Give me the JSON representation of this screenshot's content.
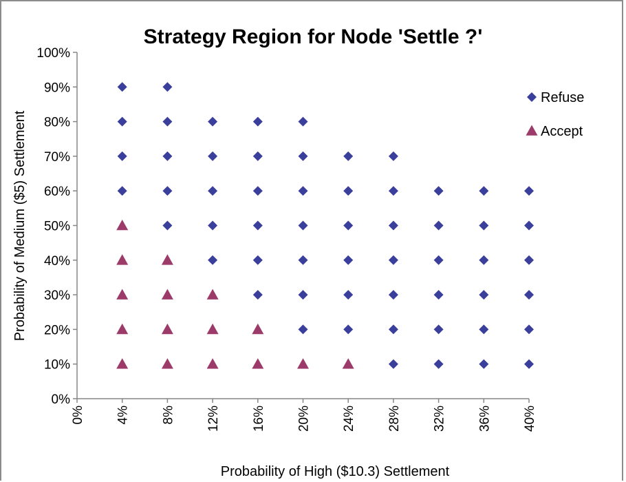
{
  "chart_data": {
    "type": "scatter",
    "title": "Strategy Region for Node 'Settle ?'",
    "xlabel": "Probability of High ($10.3) Settlement",
    "ylabel": "Probability of Medium ($5) Settlement",
    "xlim": [
      0,
      40
    ],
    "ylim": [
      0,
      100
    ],
    "x_ticks": [
      "0%",
      "4%",
      "8%",
      "12%",
      "16%",
      "20%",
      "24%",
      "28%",
      "32%",
      "36%",
      "40%"
    ],
    "y_ticks": [
      "0%",
      "10%",
      "20%",
      "30%",
      "40%",
      "50%",
      "60%",
      "70%",
      "80%",
      "90%",
      "100%"
    ],
    "grid": false,
    "legend_position": "top-right",
    "series": [
      {
        "name": "Refuse",
        "marker": "diamond",
        "color": "#3a3f9c",
        "points": [
          [
            4,
            90
          ],
          [
            8,
            90
          ],
          [
            4,
            80
          ],
          [
            8,
            80
          ],
          [
            12,
            80
          ],
          [
            16,
            80
          ],
          [
            20,
            80
          ],
          [
            4,
            70
          ],
          [
            8,
            70
          ],
          [
            12,
            70
          ],
          [
            16,
            70
          ],
          [
            20,
            70
          ],
          [
            24,
            70
          ],
          [
            28,
            70
          ],
          [
            4,
            60
          ],
          [
            8,
            60
          ],
          [
            12,
            60
          ],
          [
            16,
            60
          ],
          [
            20,
            60
          ],
          [
            24,
            60
          ],
          [
            28,
            60
          ],
          [
            32,
            60
          ],
          [
            36,
            60
          ],
          [
            40,
            60
          ],
          [
            8,
            50
          ],
          [
            12,
            50
          ],
          [
            16,
            50
          ],
          [
            20,
            50
          ],
          [
            24,
            50
          ],
          [
            28,
            50
          ],
          [
            32,
            50
          ],
          [
            36,
            50
          ],
          [
            40,
            50
          ],
          [
            12,
            40
          ],
          [
            16,
            40
          ],
          [
            20,
            40
          ],
          [
            24,
            40
          ],
          [
            28,
            40
          ],
          [
            32,
            40
          ],
          [
            36,
            40
          ],
          [
            40,
            40
          ],
          [
            16,
            30
          ],
          [
            20,
            30
          ],
          [
            24,
            30
          ],
          [
            28,
            30
          ],
          [
            32,
            30
          ],
          [
            36,
            30
          ],
          [
            40,
            30
          ],
          [
            20,
            20
          ],
          [
            24,
            20
          ],
          [
            28,
            20
          ],
          [
            32,
            20
          ],
          [
            36,
            20
          ],
          [
            40,
            20
          ],
          [
            28,
            10
          ],
          [
            32,
            10
          ],
          [
            36,
            10
          ],
          [
            40,
            10
          ]
        ]
      },
      {
        "name": "Accept",
        "marker": "triangle",
        "color": "#9c3a6a",
        "points": [
          [
            4,
            50
          ],
          [
            4,
            40
          ],
          [
            8,
            40
          ],
          [
            4,
            30
          ],
          [
            8,
            30
          ],
          [
            12,
            30
          ],
          [
            4,
            20
          ],
          [
            8,
            20
          ],
          [
            12,
            20
          ],
          [
            16,
            20
          ],
          [
            4,
            10
          ],
          [
            8,
            10
          ],
          [
            12,
            10
          ],
          [
            16,
            10
          ],
          [
            20,
            10
          ],
          [
            24,
            10
          ]
        ]
      }
    ]
  }
}
